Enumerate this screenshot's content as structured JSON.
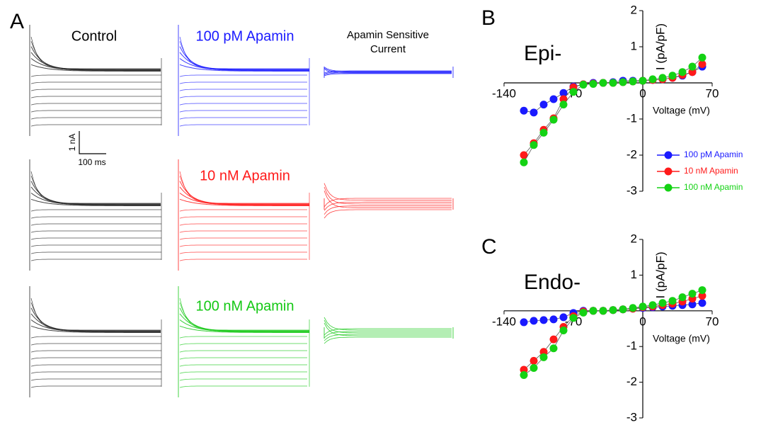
{
  "panel_a": {
    "label": "A",
    "control": "Control",
    "treatments": [
      "100 pM Apamin",
      "10 nM Apamin",
      "100 nM Apamin"
    ],
    "treatment_colors": [
      "#1a1aff",
      "#ff1a1a",
      "#14c814"
    ],
    "difference_title": [
      "Apamin Sensitive",
      "Current"
    ],
    "scale_bar": {
      "current": "1 nA",
      "time": "100 ms"
    }
  },
  "chart_data": [
    {
      "type": "line",
      "panel_label": "B",
      "title": "Epi-",
      "xlabel": "Voltage (mV)",
      "ylabel": "I (pA/pF)",
      "x": [
        -120,
        -110,
        -100,
        -90,
        -80,
        -70,
        -60,
        -50,
        -40,
        -30,
        -20,
        -10,
        0,
        10,
        20,
        30,
        40,
        50,
        60
      ],
      "xlim": [
        -140,
        70
      ],
      "xticks": [
        -140,
        -70,
        0,
        70
      ],
      "ylim": [
        -3,
        2
      ],
      "yticks": [
        -3,
        -2,
        -1,
        1,
        2
      ],
      "legend": true,
      "series": [
        {
          "name": "100 pM Apamin",
          "color": "#1a1aff",
          "values": [
            -0.77,
            -0.82,
            -0.6,
            -0.45,
            -0.28,
            -0.1,
            -0.04,
            0,
            0,
            0.02,
            0.06,
            0.06,
            0.06,
            0.08,
            0.1,
            0.14,
            0.2,
            0.3,
            0.45
          ]
        },
        {
          "name": "10 nM Apamin",
          "color": "#ff1a1a",
          "values": [
            -2.0,
            -1.67,
            -1.3,
            -0.98,
            -0.45,
            -0.12,
            -0.04,
            -0.02,
            0,
            0,
            0.02,
            0.04,
            0.06,
            0.08,
            0.1,
            0.14,
            0.22,
            0.3,
            0.52
          ]
        },
        {
          "name": "100 nM Apamin",
          "color": "#14d214",
          "values": [
            -2.2,
            -1.72,
            -1.38,
            -1.02,
            -0.6,
            -0.25,
            -0.05,
            -0.03,
            0,
            0,
            0.02,
            0.04,
            0.06,
            0.1,
            0.14,
            0.2,
            0.3,
            0.45,
            0.7
          ]
        }
      ]
    },
    {
      "type": "line",
      "panel_label": "C",
      "title": "Endo-",
      "xlabel": "Voltage (mV)",
      "ylabel": "I (pA/pF)",
      "x": [
        -120,
        -110,
        -100,
        -90,
        -80,
        -70,
        -60,
        -50,
        -40,
        -30,
        -20,
        -10,
        0,
        10,
        20,
        30,
        40,
        50,
        60
      ],
      "xlim": [
        -140,
        70
      ],
      "xticks": [
        -140,
        -70,
        0,
        70
      ],
      "ylim": [
        -3,
        2
      ],
      "yticks": [
        -3,
        -2,
        -1,
        1,
        2
      ],
      "legend": false,
      "series": [
        {
          "color": "#1a1aff",
          "values": [
            -0.32,
            -0.28,
            -0.26,
            -0.24,
            -0.18,
            -0.06,
            0,
            0,
            0,
            0.02,
            0.04,
            0.06,
            0.08,
            0.1,
            0.12,
            0.14,
            0.16,
            0.18,
            0.22
          ]
        },
        {
          "color": "#ff1a1a",
          "values": [
            -1.65,
            -1.4,
            -1.15,
            -0.8,
            -0.45,
            -0.15,
            -0.02,
            0,
            0,
            0.02,
            0.04,
            0.06,
            0.1,
            0.12,
            0.16,
            0.2,
            0.26,
            0.34,
            0.42
          ]
        },
        {
          "color": "#14d214",
          "values": [
            -1.8,
            -1.6,
            -1.3,
            -1.05,
            -0.55,
            -0.2,
            -0.05,
            0,
            0,
            0.02,
            0.04,
            0.08,
            0.12,
            0.16,
            0.22,
            0.28,
            0.38,
            0.48,
            0.58
          ]
        }
      ]
    }
  ]
}
